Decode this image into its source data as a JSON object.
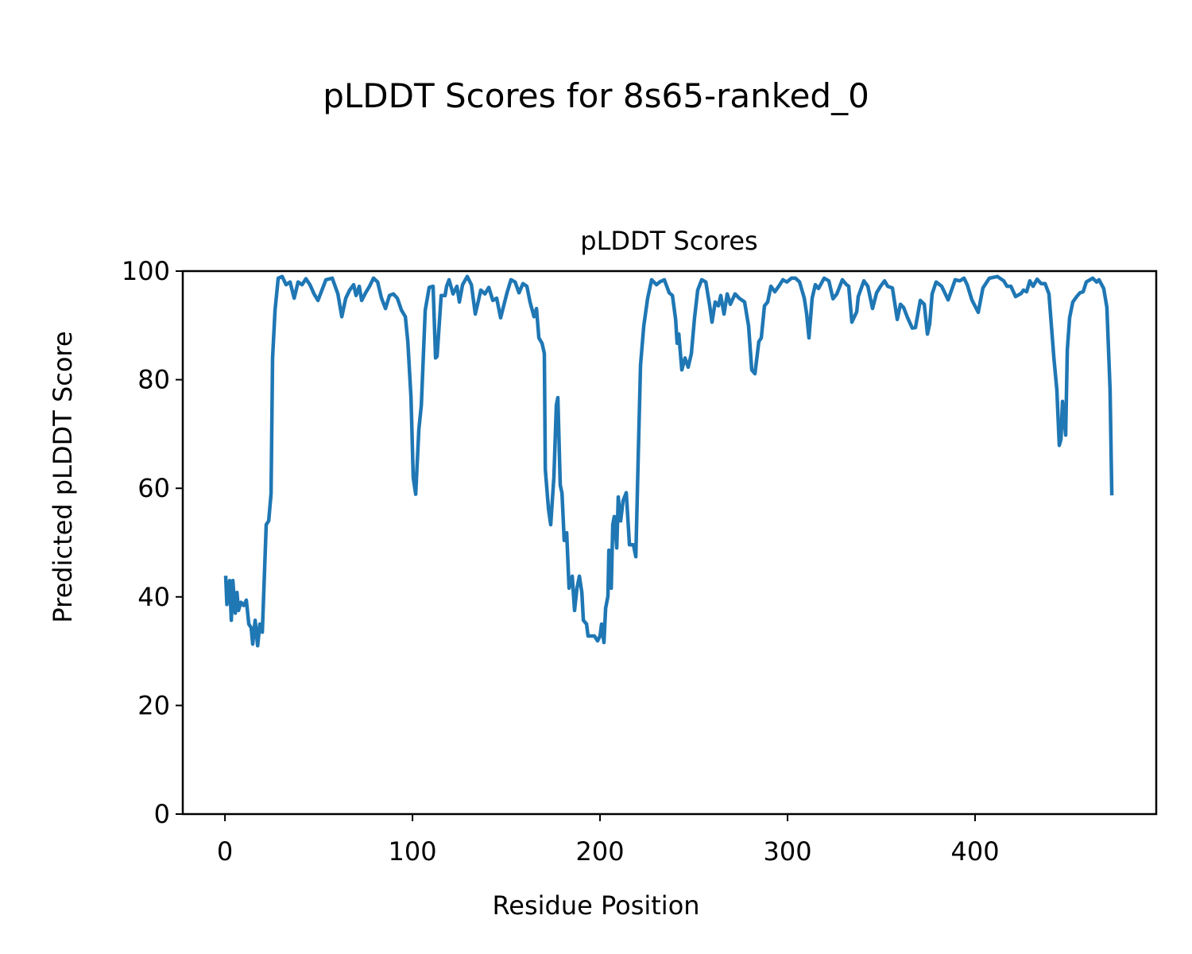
{
  "chart_data": {
    "type": "line",
    "suptitle": "pLDDT Scores for 8s65-ranked_0",
    "title": "pLDDT Scores",
    "xlabel": "Residue Position",
    "ylabel": "Predicted pLDDT Score",
    "xlim": [
      -22.5,
      496.6
    ],
    "ylim": [
      0,
      100
    ],
    "xticks": [
      0,
      100,
      200,
      300,
      400
    ],
    "yticks": [
      0,
      20,
      40,
      60,
      80,
      100
    ],
    "grid": false,
    "line_color": "#1f77b4",
    "series": [
      {
        "name": "pLDDT",
        "points": [
          [
            0.4,
            43.9
          ],
          [
            1,
            38.6
          ],
          [
            2.5,
            43
          ],
          [
            3.4,
            35.7
          ],
          [
            4.2,
            43
          ],
          [
            5.5,
            37
          ],
          [
            6.4,
            40.8
          ],
          [
            7.2,
            37.5
          ],
          [
            8.5,
            39
          ],
          [
            10,
            38.4
          ],
          [
            11.4,
            39.4
          ],
          [
            12.7,
            35
          ],
          [
            14,
            34.3
          ],
          [
            14.8,
            31.3
          ],
          [
            16.1,
            35.7
          ],
          [
            17.4,
            31
          ],
          [
            18.6,
            35
          ],
          [
            19.9,
            33.5
          ],
          [
            22,
            53.3
          ],
          [
            23.3,
            54
          ],
          [
            24.6,
            59
          ],
          [
            25.4,
            84
          ],
          [
            26.7,
            92.8
          ],
          [
            28.4,
            98.7
          ],
          [
            30.5,
            99
          ],
          [
            32.6,
            97.5
          ],
          [
            34.7,
            98
          ],
          [
            36.9,
            95
          ],
          [
            39,
            98
          ],
          [
            41.1,
            97.5
          ],
          [
            43.2,
            98.6
          ],
          [
            45.3,
            97.5
          ],
          [
            47.5,
            95.8
          ],
          [
            49.6,
            94.6
          ],
          [
            51.7,
            96.5
          ],
          [
            53.8,
            98.4
          ],
          [
            57.2,
            98.7
          ],
          [
            60.2,
            95.8
          ],
          [
            62.3,
            91.6
          ],
          [
            64.4,
            95
          ],
          [
            66.5,
            96.5
          ],
          [
            68.6,
            97.5
          ],
          [
            69.9,
            95.5
          ],
          [
            71.6,
            97.2
          ],
          [
            72.9,
            94.6
          ],
          [
            75,
            96
          ],
          [
            77.1,
            97.2
          ],
          [
            79.2,
            98.7
          ],
          [
            81.4,
            98
          ],
          [
            83.5,
            95
          ],
          [
            85.6,
            93.1
          ],
          [
            87.7,
            95.5
          ],
          [
            89.8,
            95.8
          ],
          [
            91.9,
            95
          ],
          [
            94.1,
            92.8
          ],
          [
            96.2,
            91.6
          ],
          [
            97.5,
            87
          ],
          [
            99.2,
            76.7
          ],
          [
            100.4,
            62
          ],
          [
            101.7,
            58.9
          ],
          [
            103.4,
            70.9
          ],
          [
            104.7,
            75.3
          ],
          [
            106.8,
            92.8
          ],
          [
            108.9,
            97
          ],
          [
            111,
            97.2
          ],
          [
            112.3,
            84
          ],
          [
            113.1,
            84.3
          ],
          [
            115.3,
            95.5
          ],
          [
            117.4,
            95.5
          ],
          [
            118.2,
            97.2
          ],
          [
            119.5,
            98.4
          ],
          [
            121.6,
            95.8
          ],
          [
            123.7,
            97.2
          ],
          [
            125,
            94.3
          ],
          [
            126.7,
            97.5
          ],
          [
            129.2,
            99
          ],
          [
            131.4,
            97.5
          ],
          [
            133.5,
            92.1
          ],
          [
            135.2,
            94.6
          ],
          [
            136.4,
            96.5
          ],
          [
            138.6,
            95.8
          ],
          [
            140.7,
            97
          ],
          [
            142.8,
            94.6
          ],
          [
            144.9,
            95
          ],
          [
            147,
            91.4
          ],
          [
            150.4,
            96
          ],
          [
            152.5,
            98.4
          ],
          [
            154.7,
            98
          ],
          [
            156.8,
            96
          ],
          [
            158.9,
            97.7
          ],
          [
            161,
            97.2
          ],
          [
            162.7,
            94.3
          ],
          [
            164.8,
            91.6
          ],
          [
            166.1,
            93.1
          ],
          [
            167.4,
            87.7
          ],
          [
            169.1,
            86.7
          ],
          [
            170.3,
            84.8
          ],
          [
            170.8,
            63.5
          ],
          [
            172.5,
            56.2
          ],
          [
            173.7,
            53.3
          ],
          [
            175.4,
            62
          ],
          [
            176.7,
            75.3
          ],
          [
            177.5,
            76.7
          ],
          [
            178.8,
            60.6
          ],
          [
            179.7,
            59.1
          ],
          [
            180.9,
            50.4
          ],
          [
            182.2,
            51.8
          ],
          [
            183.5,
            41.6
          ],
          [
            185.2,
            43.8
          ],
          [
            186.4,
            37.5
          ],
          [
            187.7,
            41.6
          ],
          [
            189,
            43.8
          ],
          [
            190.3,
            40.8
          ],
          [
            191.1,
            35.7
          ],
          [
            192.8,
            35
          ],
          [
            193.6,
            32.8
          ],
          [
            195.8,
            32.8
          ],
          [
            197,
            32.8
          ],
          [
            198.7,
            31.9
          ],
          [
            200,
            32.8
          ],
          [
            200.8,
            35
          ],
          [
            202.1,
            31.6
          ],
          [
            203,
            37.9
          ],
          [
            204.2,
            40.1
          ],
          [
            204.7,
            48.6
          ],
          [
            206,
            41.6
          ],
          [
            206.8,
            53.3
          ],
          [
            207.6,
            54.8
          ],
          [
            208.9,
            49
          ],
          [
            209.7,
            58.4
          ],
          [
            211,
            54
          ],
          [
            212.3,
            57.7
          ],
          [
            214,
            59.2
          ],
          [
            215.7,
            49.6
          ],
          [
            217.8,
            49.6
          ],
          [
            219.1,
            47.4
          ],
          [
            220.3,
            65
          ],
          [
            221.6,
            82.6
          ],
          [
            223.3,
            89.9
          ],
          [
            225.4,
            95
          ],
          [
            227.5,
            98.4
          ],
          [
            230.1,
            97.5
          ],
          [
            231.8,
            98
          ],
          [
            234.3,
            98.4
          ],
          [
            236.9,
            96
          ],
          [
            238.6,
            95.5
          ],
          [
            240.3,
            91.1
          ],
          [
            241.1,
            86.7
          ],
          [
            242,
            88.4
          ],
          [
            243.6,
            81.8
          ],
          [
            245.3,
            84
          ],
          [
            247,
            82.3
          ],
          [
            248.7,
            84.8
          ],
          [
            250.4,
            91.4
          ],
          [
            252.1,
            96.5
          ],
          [
            254.2,
            98.4
          ],
          [
            256.4,
            98
          ],
          [
            258.5,
            93.6
          ],
          [
            259.7,
            90.6
          ],
          [
            261.4,
            94.3
          ],
          [
            263.1,
            93.6
          ],
          [
            264.4,
            95.5
          ],
          [
            266.1,
            92.1
          ],
          [
            267.8,
            95.8
          ],
          [
            269.5,
            93.9
          ],
          [
            272,
            95.8
          ],
          [
            274.2,
            95
          ],
          [
            277.1,
            94.3
          ],
          [
            279.2,
            89.9
          ],
          [
            280.9,
            81.8
          ],
          [
            282.6,
            81.1
          ],
          [
            284.7,
            87
          ],
          [
            286,
            87.7
          ],
          [
            287.7,
            93.6
          ],
          [
            289.4,
            94.3
          ],
          [
            291.1,
            97.2
          ],
          [
            293.2,
            96.2
          ],
          [
            295.3,
            97.2
          ],
          [
            297.5,
            98.4
          ],
          [
            299.6,
            98
          ],
          [
            302.1,
            98.7
          ],
          [
            304.2,
            98.7
          ],
          [
            306.4,
            98
          ],
          [
            308.9,
            95
          ],
          [
            310.2,
            92.1
          ],
          [
            311.4,
            87.7
          ],
          [
            313.1,
            95
          ],
          [
            314.8,
            97.5
          ],
          [
            316.5,
            96.8
          ],
          [
            319.5,
            98.7
          ],
          [
            322,
            98.2
          ],
          [
            324.2,
            94.9
          ],
          [
            326.3,
            95.8
          ],
          [
            329.2,
            98.4
          ],
          [
            331.4,
            97.5
          ],
          [
            332.6,
            97.2
          ],
          [
            334.3,
            90.6
          ],
          [
            336.9,
            92.5
          ],
          [
            337.7,
            95.3
          ],
          [
            340.7,
            98.2
          ],
          [
            342.8,
            97.2
          ],
          [
            345.3,
            93.1
          ],
          [
            347.5,
            96
          ],
          [
            349.6,
            97.2
          ],
          [
            351.7,
            98.2
          ],
          [
            353.4,
            97.2
          ],
          [
            355.9,
            96.9
          ],
          [
            358.5,
            91.1
          ],
          [
            360.2,
            93.9
          ],
          [
            361.9,
            93.3
          ],
          [
            364,
            91.4
          ],
          [
            366.5,
            89.5
          ],
          [
            368.2,
            89.6
          ],
          [
            370.8,
            94.6
          ],
          [
            372.9,
            93.9
          ],
          [
            374.6,
            88.4
          ],
          [
            375.8,
            90.3
          ],
          [
            377.1,
            95.8
          ],
          [
            379.2,
            98
          ],
          [
            382.2,
            97.2
          ],
          [
            385.6,
            94.7
          ],
          [
            389.4,
            98.4
          ],
          [
            391.9,
            98.2
          ],
          [
            394.1,
            98.7
          ],
          [
            395.8,
            97.5
          ],
          [
            398.3,
            94.7
          ],
          [
            401.7,
            92.4
          ],
          [
            404.2,
            96.9
          ],
          [
            407.6,
            98.7
          ],
          [
            411.9,
            99
          ],
          [
            415.3,
            98.2
          ],
          [
            417,
            97.2
          ],
          [
            419.1,
            97.2
          ],
          [
            421.6,
            95.3
          ],
          [
            424.6,
            95.9
          ],
          [
            425.8,
            96.5
          ],
          [
            427.5,
            96.2
          ],
          [
            429.2,
            98.2
          ],
          [
            430.9,
            97.2
          ],
          [
            433.1,
            98.5
          ],
          [
            435.2,
            97.7
          ],
          [
            437.3,
            97.7
          ],
          [
            439.4,
            95.8
          ],
          [
            442,
            84
          ],
          [
            443.6,
            78.2
          ],
          [
            444.9,
            67.9
          ],
          [
            445.8,
            69
          ],
          [
            446.6,
            76
          ],
          [
            448.3,
            69.8
          ],
          [
            449.2,
            85.5
          ],
          [
            450.4,
            91.4
          ],
          [
            452.1,
            94.3
          ],
          [
            454.2,
            95.3
          ],
          [
            455.9,
            96
          ],
          [
            457.6,
            96.2
          ],
          [
            459.3,
            98
          ],
          [
            462.7,
            98.7
          ],
          [
            464.8,
            98
          ],
          [
            466.1,
            98.4
          ],
          [
            468.6,
            96.8
          ],
          [
            470.3,
            93.3
          ],
          [
            472,
            78.2
          ],
          [
            472.9,
            58.7
          ]
        ]
      }
    ]
  }
}
